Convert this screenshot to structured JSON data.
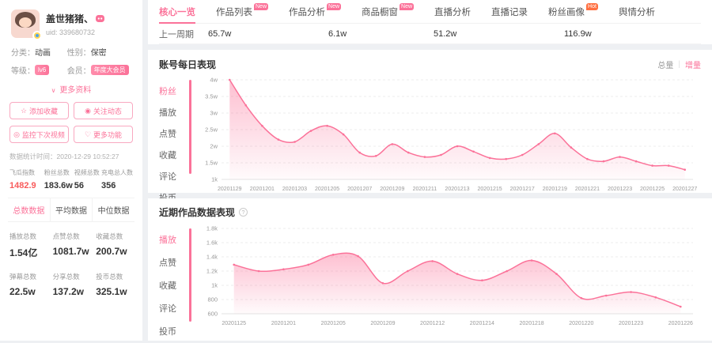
{
  "colors": {
    "accent": "#fb7299",
    "highlight_red": "#f85b5b",
    "hot_badge": "#ff7041",
    "chart_line": "#fb7299",
    "chart_fill_top": "rgba(251,114,153,0.45)",
    "chart_fill_bottom": "rgba(251,114,153,0.03)"
  },
  "icons": {
    "star": "☆",
    "eye": "◉",
    "monitor": "◎",
    "heart": "♡",
    "chevron_down": "∨",
    "info": "?"
  },
  "sidebar": {
    "name": "盖世猪猪、",
    "uid": "uid: 339680732",
    "info": {
      "category_label": "分类：",
      "category": "动画",
      "gender_label": "性别：",
      "gender": "保密",
      "level_label": "等级：",
      "level": "lv6",
      "member_label": "会员：",
      "member": "年度大会员"
    },
    "more_label": "更多资料",
    "buttons": [
      {
        "label": "添加收藏"
      },
      {
        "label": "关注动态"
      },
      {
        "label": "监控下次视频"
      },
      {
        "label": "更多功能"
      }
    ],
    "stat_time": "数据统计时间：2020-12-29 10:52:27",
    "quick_stats": [
      {
        "label": "飞瓜指数",
        "value": "1482.9"
      },
      {
        "label": "粉丝总数",
        "value": "183.6w"
      },
      {
        "label": "视频总数",
        "value": "56"
      },
      {
        "label": "充电总人数",
        "value": "356"
      }
    ],
    "data_tabs": [
      "总数数据",
      "平均数据",
      "中位数据"
    ],
    "totals": [
      {
        "label": "播放总数",
        "value": "1.54亿"
      },
      {
        "label": "点赞总数",
        "value": "1081.7w"
      },
      {
        "label": "收藏总数",
        "value": "200.7w"
      },
      {
        "label": "弹幕总数",
        "value": "22.5w"
      },
      {
        "label": "分享总数",
        "value": "137.2w"
      },
      {
        "label": "投币总数",
        "value": "325.1w"
      }
    ]
  },
  "nav": {
    "tabs": [
      {
        "label": "核心一览"
      },
      {
        "label": "作品列表",
        "badge": "New"
      },
      {
        "label": "作品分析",
        "badge": "New"
      },
      {
        "label": "商品橱窗",
        "badge": "New"
      },
      {
        "label": "直播分析"
      },
      {
        "label": "直播记录"
      },
      {
        "label": "粉丝画像",
        "badge": "Hot"
      },
      {
        "label": "舆情分析"
      }
    ]
  },
  "summary_row": {
    "label": "上一周期",
    "values": [
      "65.7w",
      "6.1w",
      "51.2w",
      "116.9w"
    ]
  },
  "daily_section": {
    "title": "账号每日表现",
    "toggle_total": "总量",
    "toggle_incr": "增量",
    "metrics": [
      "粉丝",
      "播放",
      "点赞",
      "收藏",
      "评论",
      "投币"
    ],
    "active_metric": "粉丝"
  },
  "works_section": {
    "title": "近期作品数据表现",
    "metrics": [
      "播放",
      "点赞",
      "收藏",
      "评论",
      "投币"
    ],
    "active_metric": "播放"
  },
  "chart_data": [
    {
      "type": "area",
      "title": "账号每日表现 - 粉丝增量",
      "unit": "w (万)",
      "x_labels": [
        "20201129",
        "20201201",
        "20201203",
        "20201205",
        "20201207",
        "20201209",
        "20201211",
        "20201213",
        "20201215",
        "20201217",
        "20201219",
        "20201221",
        "20201223",
        "20201225",
        "20201227"
      ],
      "label_step": 2,
      "values": [
        4.0,
        3.0,
        2.2,
        1.66,
        1.57,
        2.0,
        2.2,
        1.86,
        1.15,
        1.02,
        1.48,
        1.15,
        0.98,
        1.06,
        1.4,
        1.19,
        0.94,
        0.9,
        1.06,
        1.48,
        1.9,
        1.35,
        0.9,
        0.81,
        0.98,
        0.81,
        0.64,
        0.64,
        0.48
      ],
      "y_ticks": [
        "4w",
        "3.5w",
        "3w",
        "2.5w",
        "2w",
        "1.5w",
        "1k"
      ],
      "y_top": 4.0,
      "y_bottom": 0.1,
      "grid": true,
      "legend": false
    },
    {
      "type": "area",
      "title": "近期作品数据表现 - 播放",
      "unit": "plays",
      "x_labels": [
        "20201125",
        "20201201",
        "20201205",
        "20201209",
        "20201212",
        "20201214",
        "20201218",
        "20201220",
        "20201223",
        "20201226"
      ],
      "label_step": 2,
      "values": [
        1290,
        1200,
        1225,
        1290,
        1430,
        1410,
        1030,
        1200,
        1340,
        1160,
        1070,
        1200,
        1350,
        1160,
        820,
        855,
        905,
        830,
        700
      ],
      "y_ticks": [
        "1.8k",
        "1.6k",
        "1.4k",
        "1.2k",
        "1k",
        "800",
        "600"
      ],
      "y_top": 1800,
      "y_bottom": 600,
      "grid": true,
      "legend": false
    }
  ]
}
